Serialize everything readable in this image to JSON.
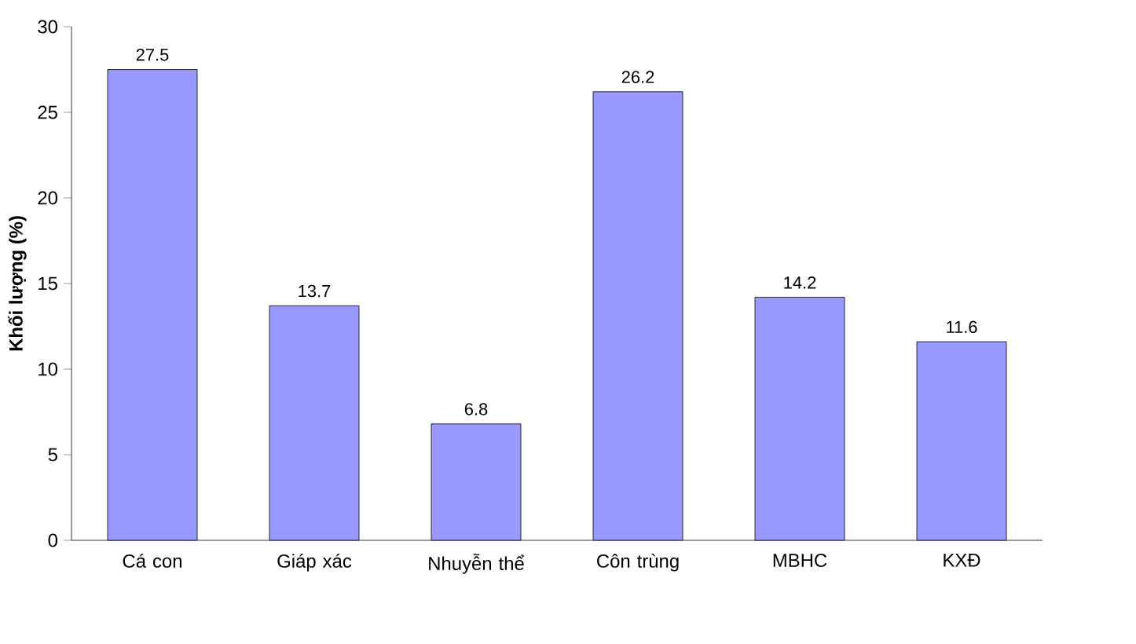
{
  "chart_data": {
    "type": "bar",
    "ylabel": "Khối lượng (%)",
    "categories": [
      "Cá con",
      "Giáp xác",
      "Nhuyễn thể",
      "Côn trùng",
      "MBHC",
      "KXĐ"
    ],
    "values": [
      27.5,
      13.7,
      6.8,
      26.2,
      14.2,
      11.6
    ],
    "color": "#9999ff",
    "ylim": [
      0,
      30
    ],
    "yticks": [
      0,
      5,
      10,
      15,
      20,
      25,
      30
    ],
    "data_labels": true
  }
}
